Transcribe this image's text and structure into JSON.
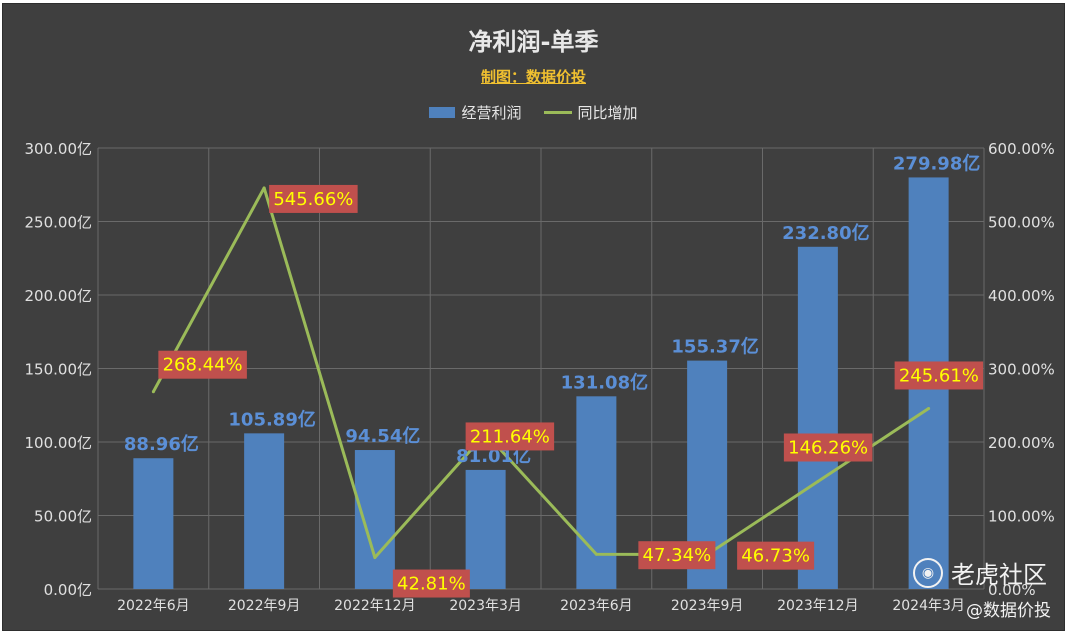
{
  "chart_data": {
    "type": "bar",
    "title": "净利润-单季",
    "subtitle": "制图：数据价投",
    "categories": [
      "2022年6月",
      "2022年9月",
      "2022年12月",
      "2023年3月",
      "2023年6月",
      "2023年9月",
      "2023年12月",
      "2024年3月"
    ],
    "series": [
      {
        "name": "经营利润",
        "type": "bar",
        "axis": "left",
        "values": [
          88.96,
          105.89,
          94.54,
          81.01,
          131.08,
          155.37,
          232.8,
          279.98
        ],
        "labels": [
          "88.96亿",
          "105.89亿",
          "94.54亿",
          "81.01亿",
          "131.08亿",
          "155.37亿",
          "232.80亿",
          "279.98亿"
        ]
      },
      {
        "name": "同比增加",
        "type": "line",
        "axis": "right",
        "values": [
          268.44,
          545.66,
          42.81,
          211.64,
          47.34,
          46.73,
          146.26,
          245.61
        ],
        "labels": [
          "268.44%",
          "545.66%",
          "42.81%",
          "211.64%",
          "47.34%",
          "46.73%",
          "146.26%",
          "245.61%"
        ]
      }
    ],
    "y_left": {
      "ylim": [
        0,
        300
      ],
      "ticks": [
        "0.00亿",
        "50.00亿",
        "100.00亿",
        "150.00亿",
        "200.00亿",
        "250.00亿",
        "300.00亿"
      ]
    },
    "y_right": {
      "ylim": [
        0,
        600
      ],
      "ticks": [
        "0.00%",
        "100.00%",
        "200.00%",
        "300.00%",
        "400.00%",
        "500.00%",
        "600.00%"
      ]
    },
    "grid": true,
    "legend_position": "top"
  },
  "colors": {
    "background": "#3f3f3f",
    "bar": "#4f81bd",
    "line": "#9bbb59",
    "bar_label": "#5b8fd6",
    "pct_label_bg": "#c0504d",
    "pct_label_text": "#ffff00",
    "grid": "#6a6a6a",
    "axis_text": "#e0e0e0"
  },
  "watermark": {
    "logo": "tiger-logo",
    "text": "老虎社区",
    "sub": "@数据价投"
  }
}
